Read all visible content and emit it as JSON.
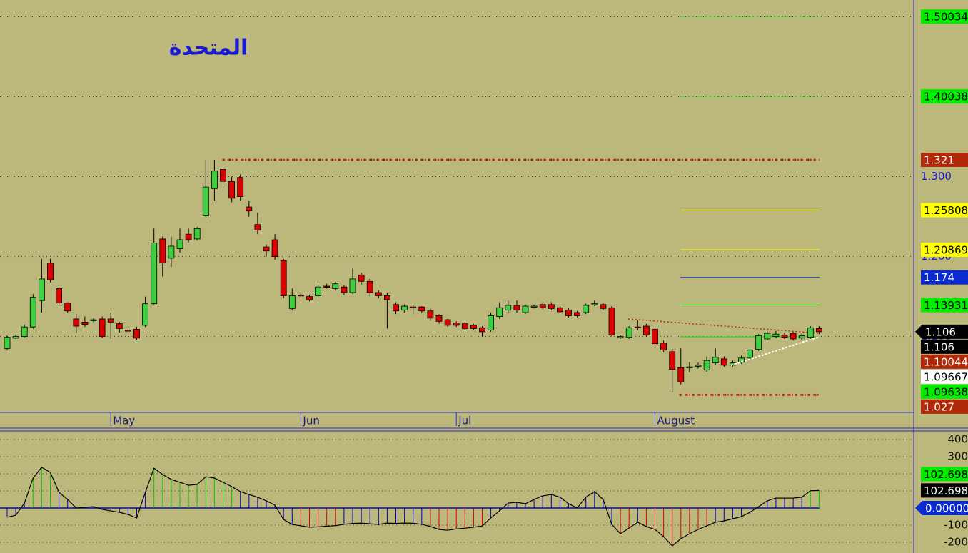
{
  "chart_data": [
    {
      "type": "candlestick",
      "title": "المتحدة",
      "categories": [
        null,
        null,
        null,
        null,
        null,
        null,
        null,
        null,
        null,
        null,
        null,
        null,
        "May",
        null,
        null,
        null,
        null,
        null,
        null,
        null,
        null,
        null,
        null,
        null,
        null,
        null,
        null,
        null,
        null,
        null,
        null,
        null,
        null,
        null,
        "Jun",
        null,
        null,
        null,
        null,
        null,
        null,
        null,
        null,
        null,
        null,
        null,
        null,
        null,
        null,
        null,
        null,
        null,
        "Jul",
        null,
        null,
        null,
        null,
        null,
        null,
        null,
        null,
        null,
        null,
        null,
        null,
        null,
        null,
        null,
        null,
        null,
        null,
        null,
        null,
        null,
        null,
        "August",
        null,
        null,
        null,
        null,
        null,
        null,
        null,
        null,
        null,
        null,
        null,
        null,
        null,
        null,
        null,
        null,
        null,
        null,
        null
      ],
      "open": [
        1.085,
        1.098,
        1.1,
        1.112,
        1.145,
        1.192,
        1.16,
        1.142,
        1.122,
        1.118,
        1.12,
        1.122,
        1.122,
        1.116,
        1.108,
        1.109,
        1.114,
        1.141,
        1.222,
        1.198,
        1.21,
        1.228,
        1.222,
        1.251,
        1.285,
        1.309,
        1.294,
        1.299,
        1.262,
        1.24,
        1.212,
        1.221,
        1.195,
        1.135,
        1.152,
        1.15,
        1.151,
        1.163,
        1.16,
        1.162,
        1.155,
        1.177,
        1.169,
        1.155,
        1.151,
        1.14,
        1.133,
        1.137,
        1.137,
        1.132,
        1.126,
        1.121,
        1.117,
        1.116,
        1.114,
        1.111,
        1.108,
        1.125,
        1.133,
        1.139,
        1.13,
        1.137,
        1.14,
        1.14,
        1.136,
        1.133,
        1.13,
        1.13,
        1.14,
        1.14,
        1.136,
        1.1,
        1.099,
        1.112,
        1.113,
        1.109,
        1.092,
        1.081,
        1.061,
        1.061,
        1.063,
        1.058,
        1.067,
        1.072,
        1.064,
        1.068,
        1.073,
        1.084,
        1.097,
        1.1,
        1.102,
        1.104,
        1.098,
        1.099,
        1.11
      ],
      "high": [
        1.101,
        1.102,
        1.115,
        1.153,
        1.197,
        1.197,
        1.162,
        1.143,
        1.128,
        1.125,
        1.123,
        1.125,
        1.13,
        1.118,
        1.11,
        1.112,
        1.15,
        1.235,
        1.225,
        1.225,
        1.235,
        1.235,
        1.237,
        1.321,
        1.321,
        1.312,
        1.3,
        1.303,
        1.27,
        1.255,
        1.215,
        1.228,
        1.197,
        1.16,
        1.156,
        1.152,
        1.165,
        1.166,
        1.168,
        1.164,
        1.185,
        1.18,
        1.172,
        1.158,
        1.155,
        1.143,
        1.14,
        1.14,
        1.138,
        1.135,
        1.128,
        1.122,
        1.119,
        1.118,
        1.116,
        1.113,
        1.13,
        1.143,
        1.145,
        1.145,
        1.14,
        1.14,
        1.143,
        1.143,
        1.138,
        1.135,
        1.132,
        1.141,
        1.145,
        1.142,
        1.138,
        1.102,
        1.113,
        1.12,
        1.116,
        1.111,
        1.095,
        1.085,
        1.085,
        1.068,
        1.067,
        1.075,
        1.085,
        1.075,
        1.07,
        1.076,
        1.085,
        1.103,
        1.107,
        1.107,
        1.105,
        1.106,
        1.104,
        1.113,
        1.113
      ],
      "low": [
        1.083,
        1.097,
        1.099,
        1.11,
        1.13,
        1.168,
        1.14,
        1.13,
        1.105,
        1.112,
        1.118,
        1.098,
        1.097,
        1.105,
        1.104,
        1.096,
        1.112,
        1.14,
        1.175,
        1.187,
        1.205,
        1.218,
        1.22,
        1.249,
        1.27,
        1.29,
        1.268,
        1.27,
        1.25,
        1.228,
        1.2,
        1.196,
        1.148,
        1.133,
        1.148,
        1.144,
        1.148,
        1.16,
        1.158,
        1.152,
        1.153,
        1.165,
        1.15,
        1.148,
        1.11,
        1.128,
        1.13,
        1.128,
        1.13,
        1.12,
        1.116,
        1.112,
        1.112,
        1.108,
        1.108,
        1.1,
        1.106,
        1.122,
        1.13,
        1.13,
        1.128,
        1.135,
        1.134,
        1.133,
        1.129,
        1.124,
        1.124,
        1.128,
        1.138,
        1.133,
        1.1,
        1.097,
        1.097,
        1.108,
        1.1,
        1.088,
        1.08,
        1.03,
        1.04,
        1.055,
        1.06,
        1.056,
        1.064,
        1.062,
        1.062,
        1.066,
        1.071,
        1.082,
        1.095,
        1.098,
        1.097,
        1.095,
        1.096,
        1.097,
        1.103
      ],
      "close": [
        1.099,
        1.1,
        1.112,
        1.149,
        1.172,
        1.171,
        1.142,
        1.132,
        1.113,
        1.115,
        1.121,
        1.1,
        1.118,
        1.11,
        1.107,
        1.098,
        1.141,
        1.217,
        1.192,
        1.213,
        1.221,
        1.221,
        1.235,
        1.287,
        1.307,
        1.294,
        1.273,
        1.275,
        1.257,
        1.233,
        1.207,
        1.2,
        1.151,
        1.151,
        1.151,
        1.146,
        1.162,
        1.162,
        1.166,
        1.155,
        1.172,
        1.169,
        1.155,
        1.151,
        1.146,
        1.132,
        1.138,
        1.136,
        1.132,
        1.123,
        1.119,
        1.114,
        1.114,
        1.11,
        1.11,
        1.106,
        1.126,
        1.136,
        1.139,
        1.133,
        1.138,
        1.138,
        1.136,
        1.135,
        1.131,
        1.126,
        1.126,
        1.139,
        1.141,
        1.135,
        1.102,
        1.1,
        1.111,
        1.111,
        1.102,
        1.091,
        1.083,
        1.059,
        1.043,
        1.062,
        1.064,
        1.07,
        1.074,
        1.064,
        1.067,
        1.073,
        1.083,
        1.101,
        1.104,
        1.103,
        1.099,
        1.097,
        1.101,
        1.111,
        1.106
      ],
      "up_color": "#3fcf3f",
      "down_color": "#dd0000",
      "ylim": [
        1.005,
        1.521
      ],
      "yticks": [
        {
          "value": 1.5,
          "label": "1.500"
        },
        {
          "value": 1.4,
          "label": "1.400"
        },
        {
          "value": 1.3,
          "label": "1.300"
        },
        {
          "value": 1.2,
          "label": "1.200"
        },
        {
          "value": 1.1,
          "label": "1.100"
        }
      ],
      "grid": true,
      "levels": [
        {
          "value": 1.50034,
          "color": "#00ee00",
          "text_color": "#000000"
        },
        {
          "value": 1.40038,
          "color": "#00ee00",
          "text_color": "#000000"
        },
        {
          "value": 1.321,
          "color": "#b02a0a",
          "text_color": "#ffffff"
        },
        {
          "value": 1.25808,
          "color": "#ffff00",
          "text_color": "#000000"
        },
        {
          "value": 1.20869,
          "color": "#ffff00",
          "text_color": "#000000"
        },
        {
          "value": 1.174,
          "color": "#0a2ad0",
          "text_color": "#ffffff"
        },
        {
          "value": 1.13931,
          "color": "#00ee00",
          "text_color": "#000000"
        },
        {
          "value": 1.106,
          "color": "#000000",
          "text_color": "#ffffff",
          "pointer": true
        },
        {
          "value": 1.106,
          "color": "#000000",
          "text_color": "#ffffff"
        },
        {
          "value": 1.10044,
          "color": "#b02a0a",
          "text_color": "#ffffff"
        },
        {
          "value": 1.09667,
          "color": "#ffffff",
          "text_color": "#000000"
        },
        {
          "value": 1.09638,
          "color": "#00ee00",
          "text_color": "#000000"
        },
        {
          "value": 1.027,
          "color": "#b02a0a",
          "text_color": "#ffffff"
        }
      ]
    },
    {
      "type": "oscillator",
      "values": [
        -54,
        -42,
        29,
        175,
        238,
        208,
        92,
        50,
        0,
        4,
        8,
        -8,
        -17,
        -25,
        -38,
        -58,
        92,
        233,
        196,
        167,
        150,
        133,
        138,
        183,
        175,
        150,
        125,
        96,
        79,
        63,
        42,
        17,
        -67,
        -96,
        -104,
        -112,
        -110,
        -106,
        -103,
        -95,
        -90,
        -88,
        -92,
        -96,
        -88,
        -90,
        -88,
        -89,
        -95,
        -108,
        -125,
        -130,
        -122,
        -118,
        -112,
        -105,
        -58,
        -17,
        29,
        33,
        25,
        50,
        71,
        79,
        63,
        25,
        0,
        63,
        96,
        50,
        -96,
        -150,
        -117,
        -83,
        -108,
        -125,
        -167,
        -221,
        -179,
        -150,
        -125,
        -104,
        -83,
        -75,
        -63,
        -50,
        -25,
        8,
        42,
        58,
        58,
        58,
        63,
        101,
        102.698
      ],
      "colors": {
        "above": "#00cc00",
        "middle": "#0000cc",
        "below": "#dd0000"
      },
      "bands": [
        -100,
        100
      ],
      "line_color": "#000000",
      "ylim": [
        -262.5,
        450
      ],
      "yticks": [
        400,
        300,
        200,
        100,
        -100,
        -200
      ],
      "grid": true,
      "levels": [
        {
          "value": 102.698,
          "color": "#00ee00",
          "text_color": "#000000"
        },
        {
          "value": 102.698,
          "color": "#000000",
          "text_color": "#ffffff"
        },
        {
          "value": 0,
          "label": "0.00000",
          "color": "#0a2ad0",
          "text_color": "#ffffff",
          "pointer": true
        }
      ]
    }
  ]
}
